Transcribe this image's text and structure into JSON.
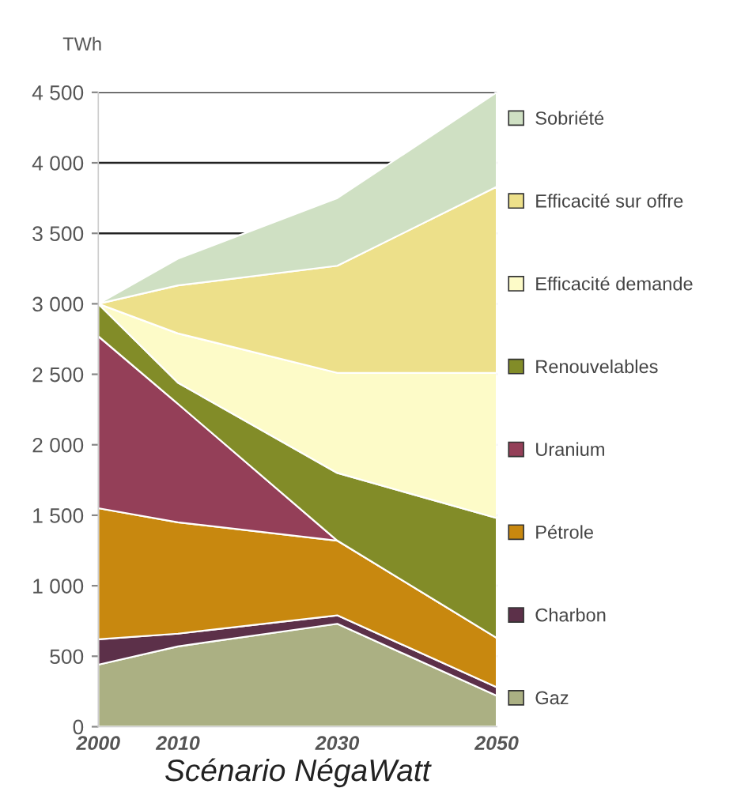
{
  "chart_data": {
    "type": "area",
    "stacked": true,
    "xlabel": "Scénario NégaWatt",
    "ylabel": "TWh",
    "x": [
      2000,
      2010,
      2030,
      2050
    ],
    "series": [
      {
        "name": "Gaz",
        "color": "#abb083",
        "values": [
          440,
          570,
          730,
          220
        ]
      },
      {
        "name": "Charbon",
        "color": "#5c3049",
        "values": [
          180,
          90,
          60,
          60
        ]
      },
      {
        "name": "Pétrole",
        "color": "#c8880f",
        "values": [
          930,
          790,
          530,
          350
        ]
      },
      {
        "name": "Uranium",
        "color": "#943f58",
        "values": [
          1220,
          840,
          0,
          0
        ]
      },
      {
        "name": "Renouvelables",
        "color": "#828c28",
        "values": [
          230,
          150,
          480,
          850
        ]
      },
      {
        "name": "Efficacité demande",
        "color": "#fdfbc8",
        "values": [
          0,
          350,
          710,
          1030
        ]
      },
      {
        "name": "Efficacité sur offre",
        "color": "#ede08a",
        "values": [
          0,
          340,
          760,
          1320
        ]
      },
      {
        "name": "Sobriété",
        "color": "#cfe0c3",
        "values": [
          0,
          190,
          480,
          670
        ]
      }
    ],
    "xlim": [
      2000,
      2050
    ],
    "xticks": [
      2000,
      2010,
      2030,
      2050
    ],
    "ylim": [
      0,
      4500
    ],
    "yticks": [
      0,
      500,
      {
        "value": 1000,
        "label": "1 000"
      },
      {
        "value": 1500,
        "label": "1 500"
      },
      {
        "value": 2000,
        "label": "2 000"
      },
      {
        "value": 2500,
        "label": "2 500"
      },
      {
        "value": 3000,
        "label": "3 000"
      },
      {
        "value": 3500,
        "label": "3 500"
      },
      {
        "value": 4000,
        "label": "4 000"
      },
      {
        "value": 4500,
        "label": "4 500"
      }
    ],
    "grid": "y",
    "legend": "right"
  }
}
